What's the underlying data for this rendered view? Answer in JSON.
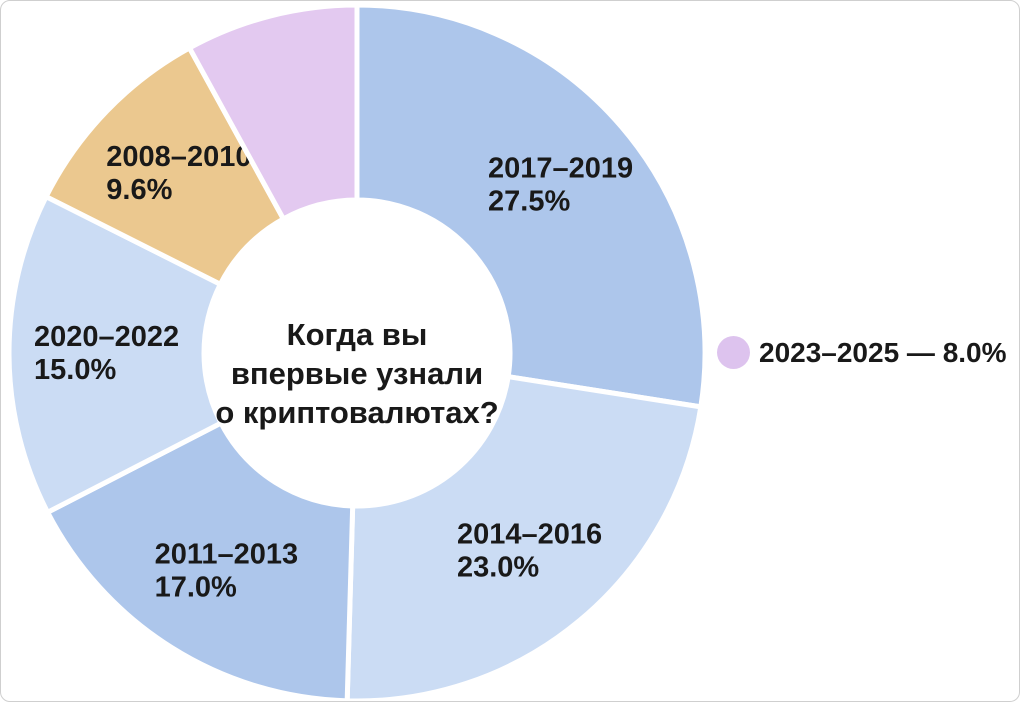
{
  "background": "#ffffff",
  "text_color": "#191919",
  "center_title": {
    "lines": [
      "Когда вы",
      "впервые узнали",
      "о криптовалютах?"
    ]
  },
  "legend": {
    "label": "2023–2025 — 8.0%",
    "dot_color": "#ddc3ee"
  },
  "chart_data": {
    "type": "pie",
    "donut": true,
    "title": "Когда вы впервые узнали о криптовалютах?",
    "start_angle_deg": 0,
    "direction": "clockwise",
    "gap_color": "#ffffff",
    "segments": [
      {
        "label": "2017–2019",
        "value": 27.5,
        "pct_label": "27.5%",
        "color": "#adc6eb",
        "label_in_chart": true
      },
      {
        "label": "2014–2016",
        "value": 23.0,
        "pct_label": "23.0%",
        "color": "#cbdcf4",
        "label_in_chart": true
      },
      {
        "label": "2011–2013",
        "value": 17.0,
        "pct_label": "17.0%",
        "color": "#adc6eb",
        "label_in_chart": true
      },
      {
        "label": "2020–2022",
        "value": 15.0,
        "pct_label": "15.0%",
        "color": "#cbdcf4",
        "label_in_chart": true
      },
      {
        "label": "2008–2010",
        "value": 9.6,
        "pct_label": "9.6%",
        "color": "#ebc88f",
        "label_in_chart": true
      },
      {
        "label": "2023–2025",
        "value": 8.0,
        "pct_label": "8.0%",
        "color": "#e3c9f0",
        "label_in_chart": false
      }
    ]
  }
}
